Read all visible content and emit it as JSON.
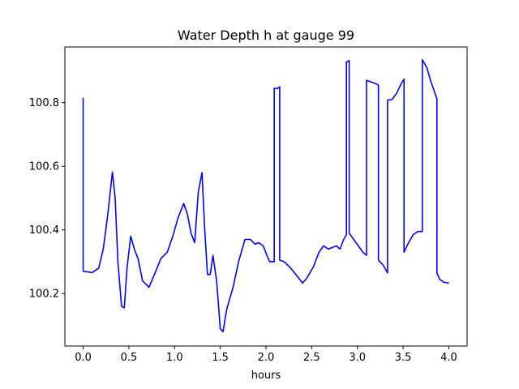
{
  "chart_data": {
    "type": "line",
    "title": "Water Depth h at gauge 99",
    "xlabel": "hours",
    "ylabel": "",
    "xlim": [
      -0.2,
      4.2
    ],
    "ylim": [
      100.035,
      100.975
    ],
    "x_ticks": [
      0.0,
      0.5,
      1.0,
      1.5,
      2.0,
      2.5,
      3.0,
      3.5,
      4.0
    ],
    "x_tick_labels": [
      "0.0",
      "0.5",
      "1.0",
      "1.5",
      "2.0",
      "2.5",
      "3.0",
      "3.5",
      "4.0"
    ],
    "y_ticks": [
      100.2,
      100.4,
      100.6,
      100.8
    ],
    "y_tick_labels": [
      "100.2",
      "100.4",
      "100.6",
      "100.8"
    ],
    "grid": false,
    "legend": "none",
    "series": [
      {
        "color": "#0000ff",
        "x": [
          0.0,
          0.0,
          0.1,
          0.17,
          0.22,
          0.27,
          0.32,
          0.35,
          0.38,
          0.42,
          0.45,
          0.48,
          0.52,
          0.56,
          0.6,
          0.65,
          0.72,
          0.78,
          0.85,
          0.92,
          0.98,
          1.04,
          1.1,
          1.14,
          1.18,
          1.22,
          1.26,
          1.3,
          1.33,
          1.36,
          1.39,
          1.42,
          1.46,
          1.5,
          1.53,
          1.57,
          1.6,
          1.64,
          1.7,
          1.77,
          1.83,
          1.88,
          1.92,
          1.97,
          2.01,
          2.04,
          2.09,
          2.09,
          2.13,
          2.15,
          2.15,
          2.2,
          2.27,
          2.34,
          2.4,
          2.45,
          2.52,
          2.58,
          2.63,
          2.68,
          2.73,
          2.77,
          2.81,
          2.85,
          2.88,
          2.88,
          2.91,
          2.91,
          2.96,
          3.01,
          3.06,
          3.1,
          3.1,
          3.15,
          3.2,
          3.23,
          3.23,
          3.28,
          3.33,
          3.33,
          3.38,
          3.43,
          3.48,
          3.51,
          3.51,
          3.56,
          3.61,
          3.66,
          3.71,
          3.71,
          3.76,
          3.8,
          3.87,
          3.87,
          3.9,
          3.95,
          4.0
        ],
        "y": [
          100.815,
          100.27,
          100.266,
          100.28,
          100.34,
          100.45,
          100.582,
          100.5,
          100.3,
          100.16,
          100.155,
          100.28,
          100.38,
          100.34,
          100.31,
          100.24,
          100.22,
          100.26,
          100.31,
          100.33,
          100.38,
          100.44,
          100.483,
          100.45,
          100.39,
          100.36,
          100.52,
          100.58,
          100.4,
          100.26,
          100.26,
          100.32,
          100.24,
          100.09,
          100.08,
          100.15,
          100.18,
          100.22,
          100.3,
          100.37,
          100.37,
          100.355,
          100.36,
          100.35,
          100.32,
          100.3,
          100.3,
          100.845,
          100.845,
          100.85,
          100.305,
          100.3,
          100.28,
          100.255,
          100.233,
          100.25,
          100.285,
          100.33,
          100.35,
          100.34,
          100.345,
          100.35,
          100.34,
          100.37,
          100.385,
          100.928,
          100.932,
          100.39,
          100.37,
          100.35,
          100.33,
          100.32,
          100.87,
          100.865,
          100.86,
          100.855,
          100.305,
          100.29,
          100.265,
          100.808,
          100.81,
          100.83,
          100.86,
          100.874,
          100.33,
          100.36,
          100.385,
          100.395,
          100.395,
          100.935,
          100.91,
          100.87,
          100.812,
          100.265,
          100.245,
          100.235,
          100.233
        ]
      }
    ]
  }
}
